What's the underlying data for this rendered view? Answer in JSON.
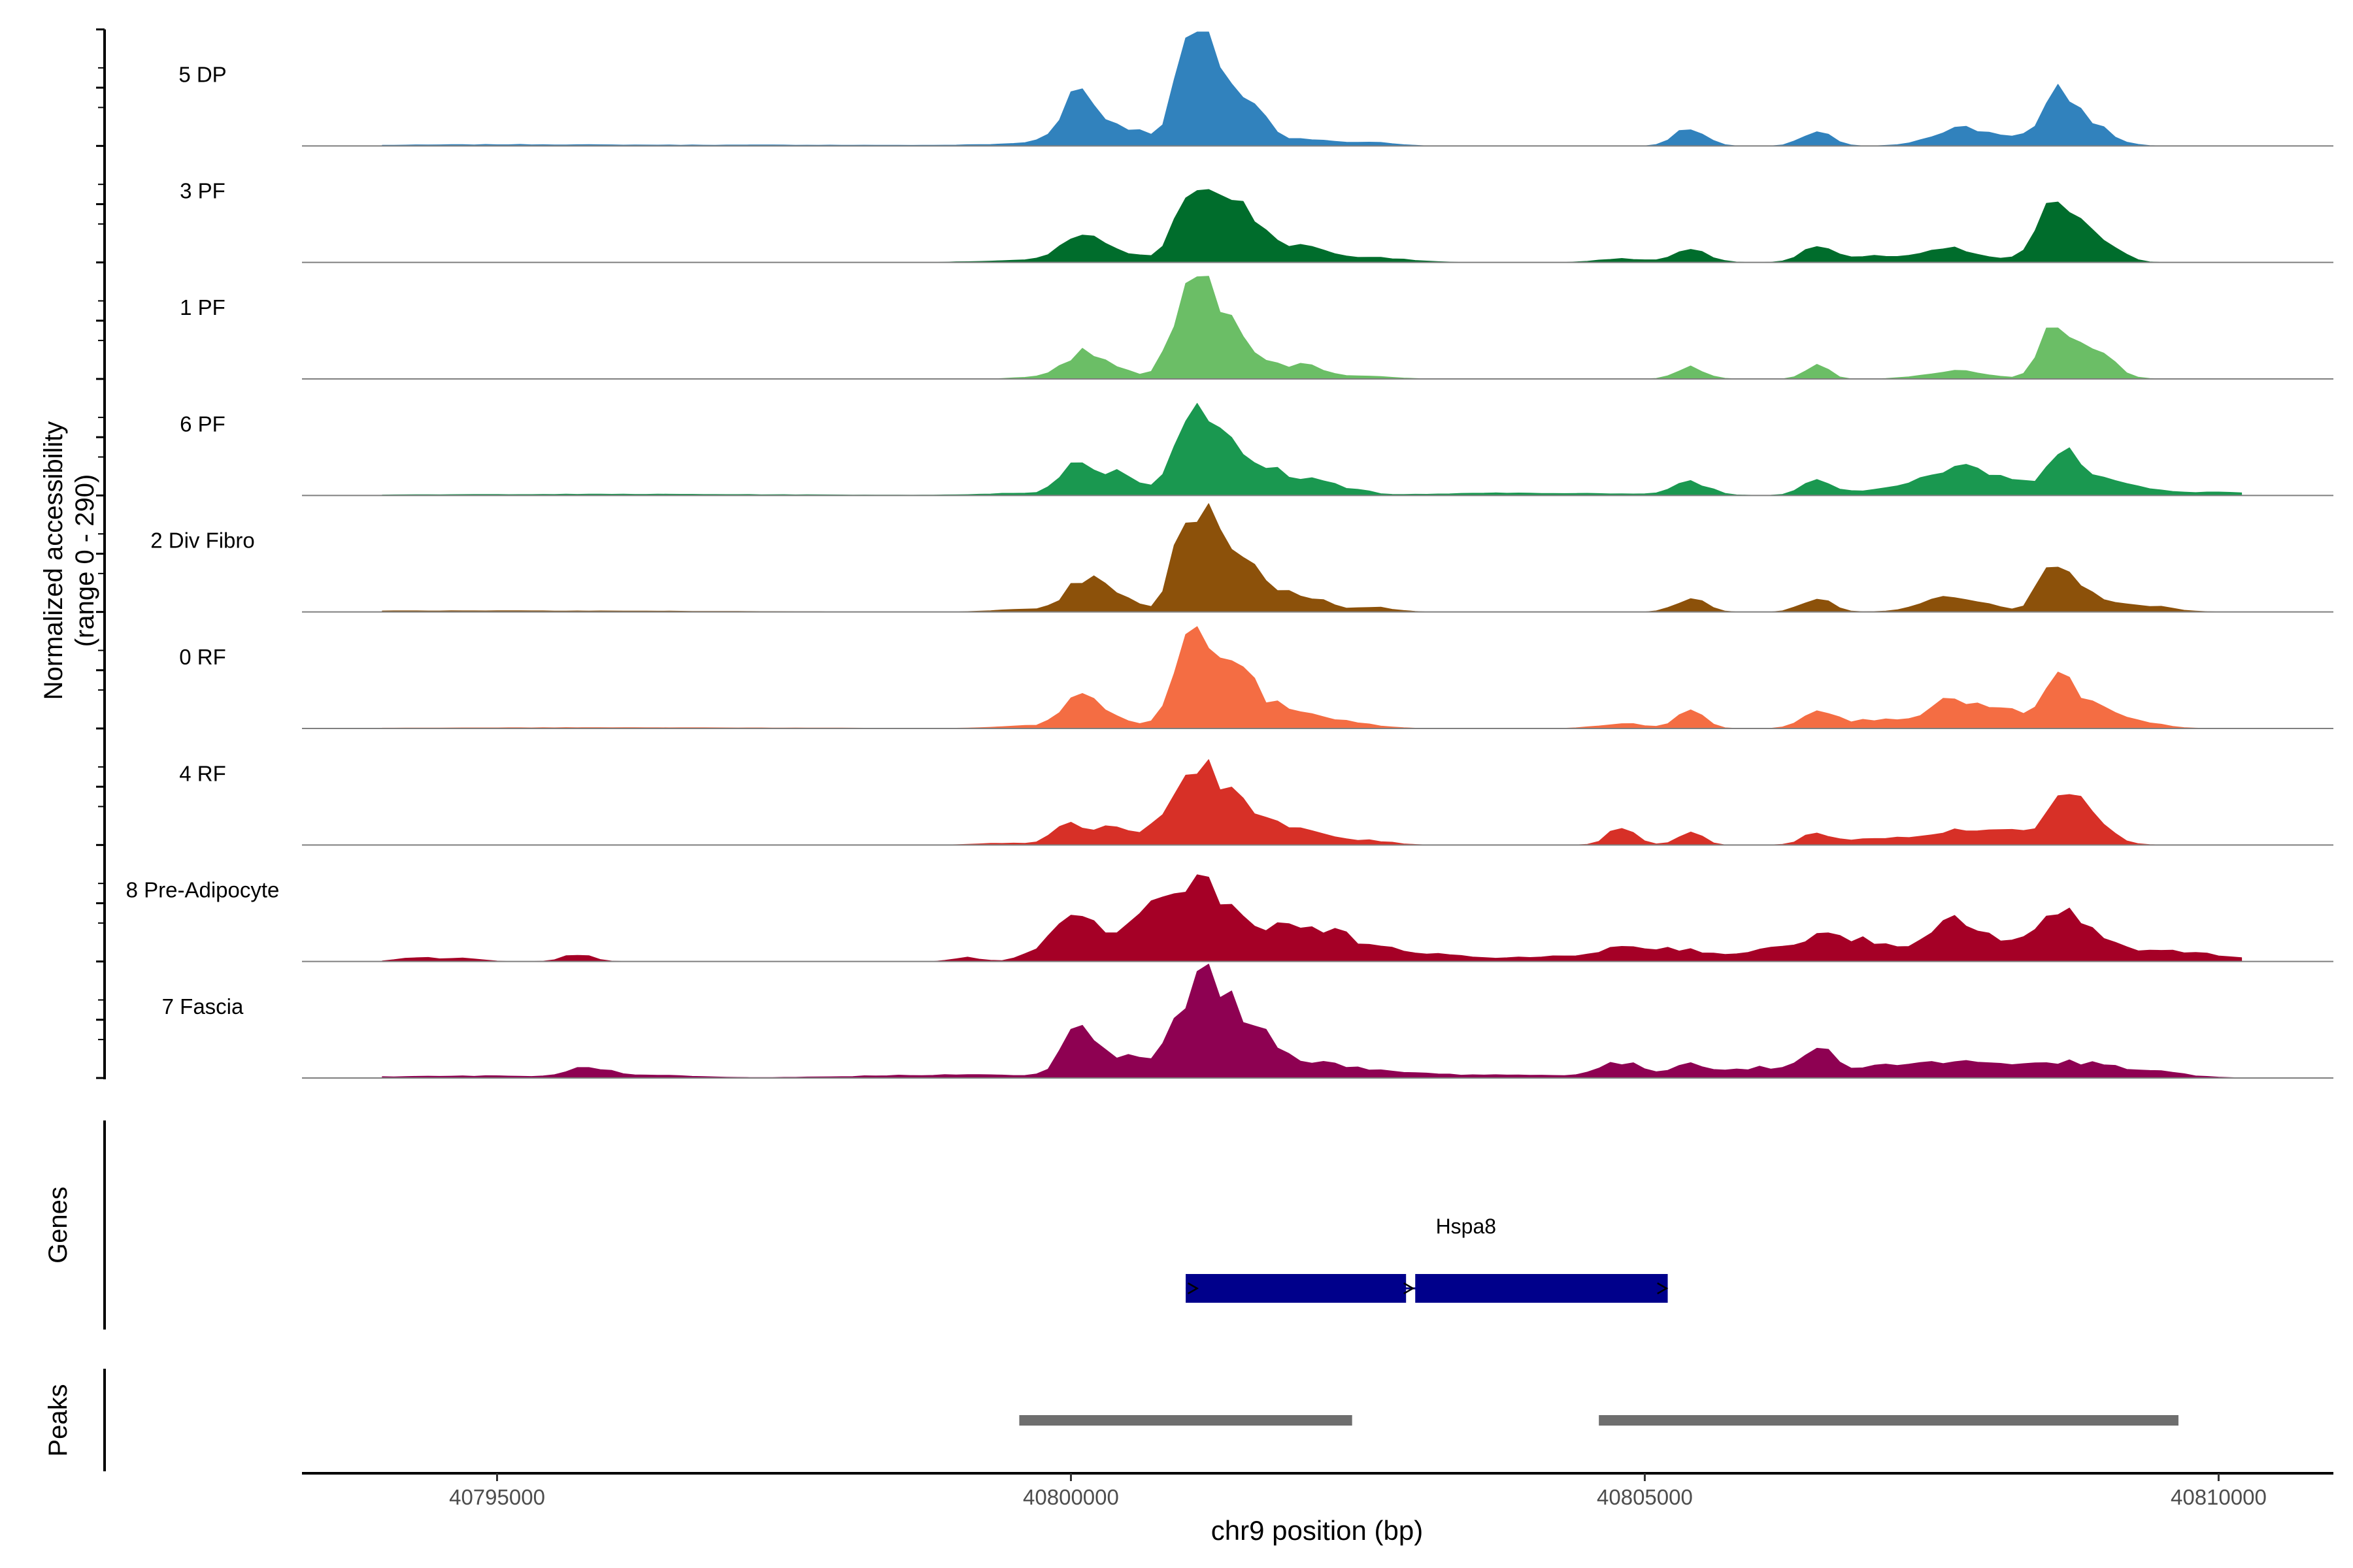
{
  "chart_data": {
    "type": "area",
    "title": "",
    "region": "chr9",
    "xlabel": "chr9 position (bp)",
    "ylabel_line1": "Normalized accessibility",
    "ylabel_line2": "(range 0 - 290)",
    "ylim": [
      0,
      290
    ],
    "xlim": [
      40793300,
      40811000
    ],
    "xticks": [
      40795000,
      40800000,
      40805000,
      40810000
    ],
    "xtick_labels": [
      "40795000",
      "40800000",
      "40805000",
      "40810000"
    ],
    "x_start": 40794000,
    "x_end": 40810200,
    "x_step": 100,
    "series": [
      {
        "name": "5 DP",
        "color": "#3182BD",
        "peaks": [
          [
            40795000,
            900,
            3
          ],
          [
            40797500,
            1200,
            2
          ],
          [
            40799600,
            400,
            4
          ],
          [
            40800050,
            120,
            95
          ],
          [
            40800150,
            250,
            45
          ],
          [
            40800500,
            280,
            30
          ],
          [
            40800950,
            100,
            130
          ],
          [
            40801100,
            90,
            180
          ],
          [
            40801200,
            120,
            150
          ],
          [
            40801400,
            180,
            110
          ],
          [
            40801650,
            150,
            45
          ],
          [
            40802100,
            150,
            18
          ],
          [
            40802600,
            200,
            10
          ],
          [
            40805400,
            130,
            45
          ],
          [
            40806500,
            130,
            35
          ],
          [
            40807700,
            220,
            35
          ],
          [
            40808600,
            110,
            80
          ],
          [
            40808800,
            200,
            65
          ],
          [
            40808250,
            400,
            25
          ]
        ]
      },
      {
        "name": "3 PF",
        "color": "#006D2C",
        "peaks": [
          [
            40799700,
            400,
            6
          ],
          [
            40800050,
            130,
            50
          ],
          [
            40800300,
            250,
            35
          ],
          [
            40800950,
            100,
            135
          ],
          [
            40801150,
            100,
            160
          ],
          [
            40801400,
            150,
            130
          ],
          [
            40801700,
            200,
            55
          ],
          [
            40802100,
            150,
            30
          ],
          [
            40802600,
            300,
            12
          ],
          [
            40804800,
            200,
            10
          ],
          [
            40805400,
            150,
            30
          ],
          [
            40806500,
            130,
            45
          ],
          [
            40807000,
            300,
            15
          ],
          [
            40807700,
            220,
            35
          ],
          [
            40808500,
            120,
            75
          ],
          [
            40808700,
            220,
            95
          ],
          [
            40809000,
            150,
            30
          ]
        ]
      },
      {
        "name": "1 PF",
        "color": "#6BBE66",
        "peaks": [
          [
            40799700,
            200,
            4
          ],
          [
            40800100,
            160,
            55
          ],
          [
            40800350,
            200,
            25
          ],
          [
            40800950,
            120,
            150
          ],
          [
            40801150,
            110,
            165
          ],
          [
            40801350,
            140,
            140
          ],
          [
            40801650,
            150,
            50
          ],
          [
            40802000,
            120,
            30
          ],
          [
            40802200,
            150,
            12
          ],
          [
            40802600,
            200,
            8
          ],
          [
            40805400,
            120,
            30
          ],
          [
            40806500,
            100,
            35
          ],
          [
            40807700,
            250,
            20
          ],
          [
            40808550,
            100,
            110
          ],
          [
            40808750,
            200,
            80
          ],
          [
            40809000,
            150,
            25
          ]
        ]
      },
      {
        "name": "6 PF",
        "color": "#1A9850",
        "peaks": [
          [
            40796000,
            1500,
            3
          ],
          [
            40799500,
            300,
            5
          ],
          [
            40800000,
            120,
            60
          ],
          [
            40800250,
            200,
            45
          ],
          [
            40800500,
            200,
            30
          ],
          [
            40800950,
            100,
            130
          ],
          [
            40801100,
            90,
            165
          ],
          [
            40801300,
            130,
            135
          ],
          [
            40801600,
            150,
            70
          ],
          [
            40801900,
            150,
            40
          ],
          [
            40802200,
            150,
            30
          ],
          [
            40802500,
            120,
            12
          ],
          [
            40804000,
            800,
            6
          ],
          [
            40805400,
            150,
            35
          ],
          [
            40806500,
            130,
            40
          ],
          [
            40807200,
            350,
            18
          ],
          [
            40807700,
            250,
            55
          ],
          [
            40808150,
            250,
            35
          ],
          [
            40808650,
            110,
            105
          ],
          [
            40808850,
            200,
            50
          ],
          [
            40809300,
            250,
            18
          ],
          [
            40810000,
            200,
            10
          ]
        ]
      },
      {
        "name": "2 Div Fibro",
        "color": "#8C510A",
        "peaks": [
          [
            40795000,
            1500,
            3
          ],
          [
            40799600,
            250,
            6
          ],
          [
            40800100,
            150,
            65
          ],
          [
            40800350,
            200,
            40
          ],
          [
            40800950,
            100,
            155
          ],
          [
            40801150,
            110,
            185
          ],
          [
            40801400,
            150,
            150
          ],
          [
            40801700,
            200,
            60
          ],
          [
            40802100,
            150,
            30
          ],
          [
            40802600,
            200,
            12
          ],
          [
            40805400,
            130,
            35
          ],
          [
            40806500,
            130,
            35
          ],
          [
            40807700,
            250,
            40
          ],
          [
            40808550,
            120,
            95
          ],
          [
            40808750,
            200,
            55
          ],
          [
            40809300,
            250,
            18
          ]
        ]
      },
      {
        "name": "0 RF",
        "color": "#F46D43",
        "peaks": [
          [
            40796000,
            1500,
            2
          ],
          [
            40799600,
            250,
            6
          ],
          [
            40800050,
            140,
            65
          ],
          [
            40800300,
            200,
            35
          ],
          [
            40800950,
            110,
            155
          ],
          [
            40801150,
            110,
            175
          ],
          [
            40801400,
            150,
            145
          ],
          [
            40801700,
            200,
            55
          ],
          [
            40802100,
            180,
            30
          ],
          [
            40802500,
            200,
            12
          ],
          [
            40804800,
            200,
            12
          ],
          [
            40805400,
            120,
            45
          ],
          [
            40806500,
            130,
            50
          ],
          [
            40807100,
            300,
            25
          ],
          [
            40807700,
            200,
            65
          ],
          [
            40808150,
            220,
            40
          ],
          [
            40808600,
            130,
            95
          ],
          [
            40808850,
            200,
            60
          ],
          [
            40809300,
            200,
            15
          ]
        ]
      },
      {
        "name": "4 RF",
        "color": "#D73027",
        "peaks": [
          [
            40799500,
            250,
            5
          ],
          [
            40800000,
            130,
            60
          ],
          [
            40800350,
            130,
            40
          ],
          [
            40800700,
            120,
            45
          ],
          [
            40800950,
            100,
            135
          ],
          [
            40801150,
            110,
            160
          ],
          [
            40801400,
            150,
            130
          ],
          [
            40801750,
            150,
            45
          ],
          [
            40802100,
            200,
            30
          ],
          [
            40802600,
            200,
            10
          ],
          [
            40804800,
            120,
            45
          ],
          [
            40805400,
            100,
            35
          ],
          [
            40806500,
            120,
            30
          ],
          [
            40807100,
            300,
            18
          ],
          [
            40807700,
            220,
            30
          ],
          [
            40808150,
            200,
            35
          ],
          [
            40808600,
            120,
            110
          ],
          [
            40808800,
            150,
            85
          ],
          [
            40809000,
            150,
            25
          ]
        ]
      },
      {
        "name": "8 Pre-Adipocyte",
        "color": "#A50026",
        "peaks": [
          [
            40795700,
            120,
            18
          ],
          [
            40794300,
            150,
            10
          ],
          [
            40794700,
            150,
            8
          ],
          [
            40799100,
            120,
            10
          ],
          [
            40799700,
            150,
            15
          ],
          [
            40800000,
            180,
            80
          ],
          [
            40800300,
            200,
            55
          ],
          [
            40800600,
            150,
            60
          ],
          [
            40800800,
            120,
            140
          ],
          [
            40801100,
            130,
            160
          ],
          [
            40801300,
            150,
            100
          ],
          [
            40801600,
            200,
            70
          ],
          [
            40801900,
            200,
            50
          ],
          [
            40802150,
            150,
            55
          ],
          [
            40802400,
            120,
            45
          ],
          [
            40802700,
            150,
            30
          ],
          [
            40803000,
            200,
            15
          ],
          [
            40803400,
            300,
            10
          ],
          [
            40804300,
            400,
            12
          ],
          [
            40804800,
            200,
            25
          ],
          [
            40805300,
            300,
            30
          ],
          [
            40806200,
            300,
            28
          ],
          [
            40806600,
            250,
            40
          ],
          [
            40807000,
            300,
            35
          ],
          [
            40807700,
            200,
            100
          ],
          [
            40808200,
            250,
            45
          ],
          [
            40808650,
            200,
            95
          ],
          [
            40808900,
            200,
            40
          ],
          [
            40809300,
            300,
            18
          ],
          [
            40809800,
            300,
            20
          ]
        ]
      },
      {
        "name": "7 Fascia",
        "color": "#8E0152",
        "peaks": [
          [
            40794800,
            800,
            5
          ],
          [
            40795800,
            150,
            25
          ],
          [
            40796300,
            400,
            6
          ],
          [
            40799000,
            800,
            8
          ],
          [
            40800050,
            130,
            95
          ],
          [
            40800300,
            250,
            35
          ],
          [
            40800600,
            250,
            30
          ],
          [
            40800950,
            110,
            140
          ],
          [
            40801150,
            110,
            170
          ],
          [
            40801350,
            130,
            155
          ],
          [
            40801600,
            180,
            100
          ],
          [
            40801900,
            180,
            35
          ],
          [
            40802250,
            200,
            25
          ],
          [
            40802700,
            300,
            12
          ],
          [
            40803600,
            800,
            8
          ],
          [
            40804800,
            200,
            35
          ],
          [
            40805400,
            150,
            35
          ],
          [
            40806000,
            300,
            25
          ],
          [
            40806500,
            120,
            65
          ],
          [
            40807000,
            350,
            30
          ],
          [
            40807700,
            300,
            35
          ],
          [
            40808300,
            300,
            25
          ],
          [
            40808800,
            300,
            30
          ],
          [
            40809400,
            300,
            15
          ]
        ]
      }
    ],
    "genes": {
      "title": "Genes",
      "items": [
        {
          "name": "Hspa8",
          "start": 40801000,
          "end": 40805200,
          "exons": [
            [
              40801000,
              40802920
            ],
            [
              40803000,
              40805200
            ]
          ],
          "strand": "-",
          "color": "#00008B"
        }
      ]
    },
    "peaks_track": {
      "title": "Peaks",
      "color": "#6E6E6E",
      "items": [
        [
          40799550,
          40802450
        ],
        [
          40804600,
          40809650
        ]
      ]
    }
  }
}
